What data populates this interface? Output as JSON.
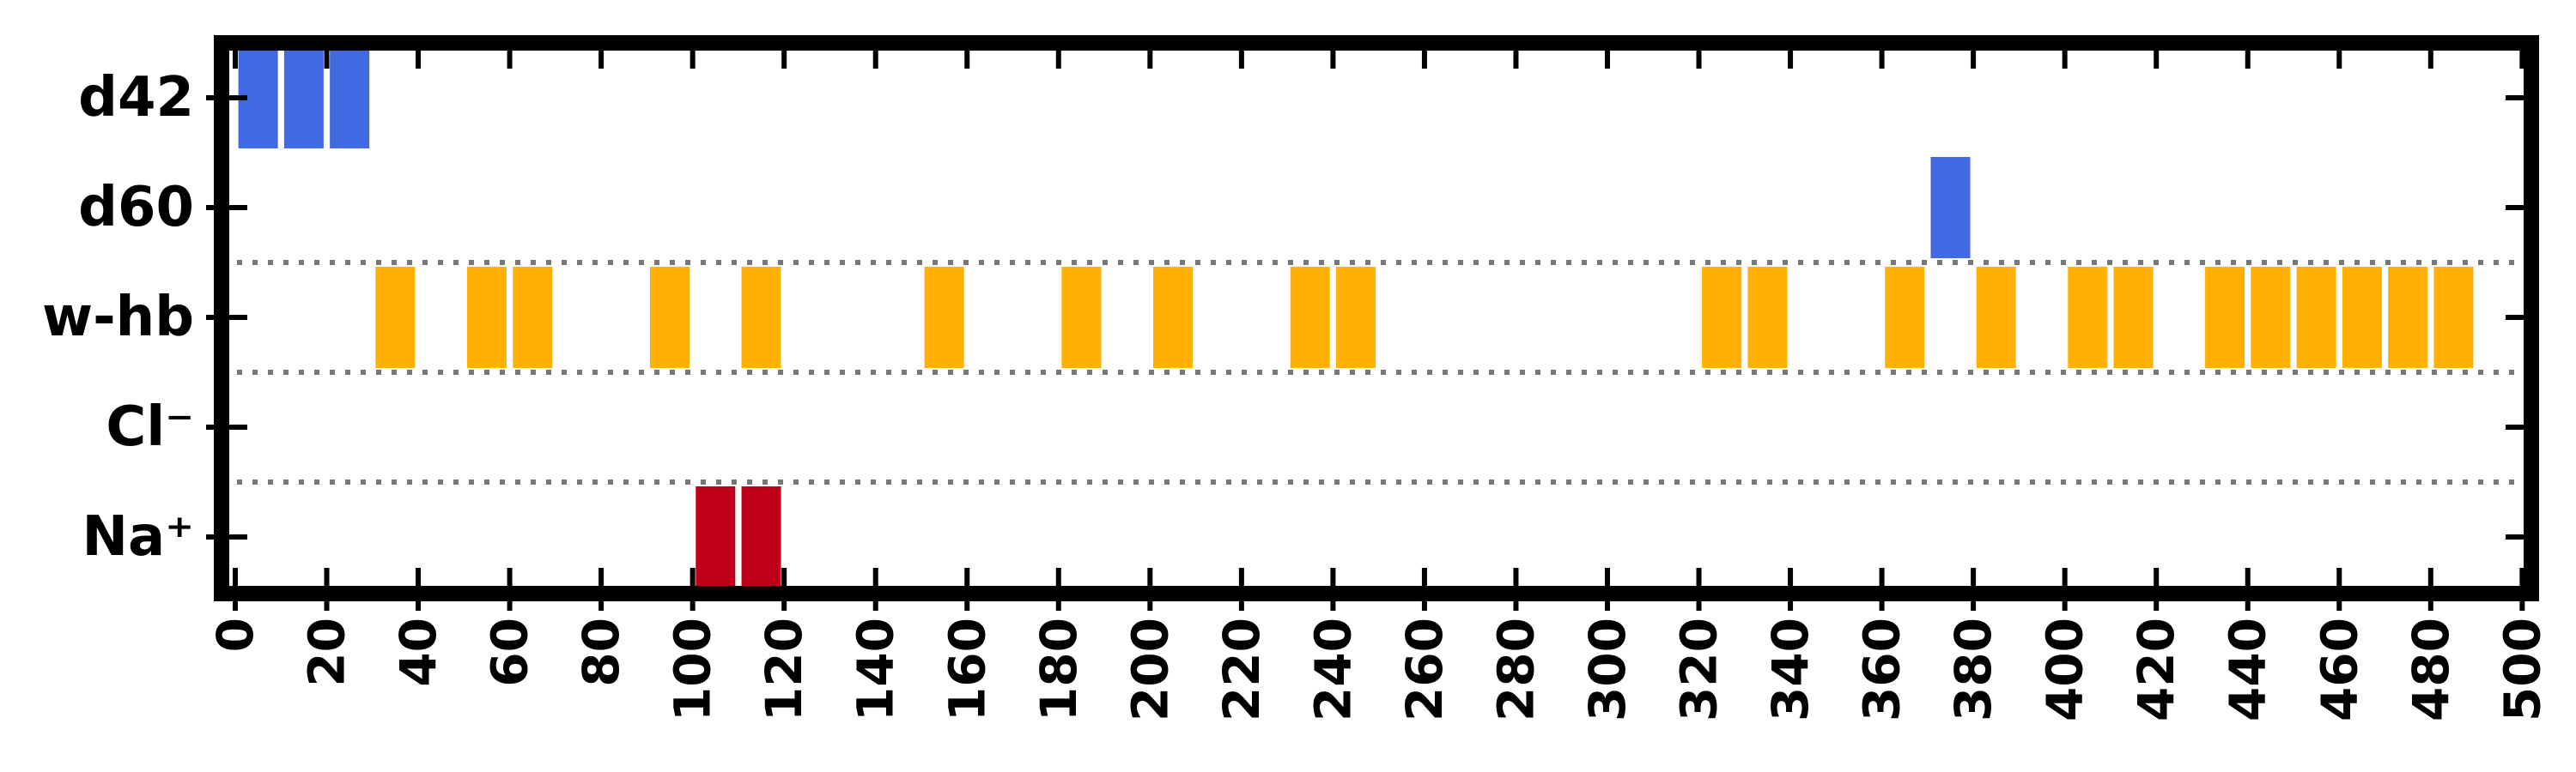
{
  "chart_data": {
    "type": "bar",
    "title": "",
    "xlabel": "",
    "ylabel": "",
    "xlim": [
      -3,
      502
    ],
    "xticks": [
      0,
      20,
      40,
      60,
      80,
      100,
      120,
      140,
      160,
      180,
      200,
      220,
      240,
      260,
      280,
      300,
      320,
      340,
      360,
      380,
      400,
      420,
      440,
      460,
      480,
      500
    ],
    "rows": [
      {
        "label": "d42",
        "color": "#4169e1",
        "x": [
          5,
          15,
          25
        ]
      },
      {
        "label": "d60",
        "color": "#4169e1",
        "x": [
          375
        ]
      },
      {
        "label": "w-hb",
        "color": "#ffb000",
        "x": [
          35,
          55,
          65,
          95,
          115,
          155,
          185,
          205,
          235,
          245,
          325,
          335,
          365,
          385,
          405,
          415,
          435,
          445,
          455,
          465,
          475,
          485
        ]
      },
      {
        "label": "Cl⁻",
        "color": "#c00018",
        "x": []
      },
      {
        "label": "Na⁺",
        "color": "#c00018",
        "x": [
          105,
          115
        ]
      }
    ],
    "separators_between_rows": [
      "d60|w-hb",
      "w-hb|Cl⁻",
      "Cl⁻|Na⁺"
    ],
    "separator_style": "dotted gray",
    "grid": false,
    "legend": "none"
  }
}
